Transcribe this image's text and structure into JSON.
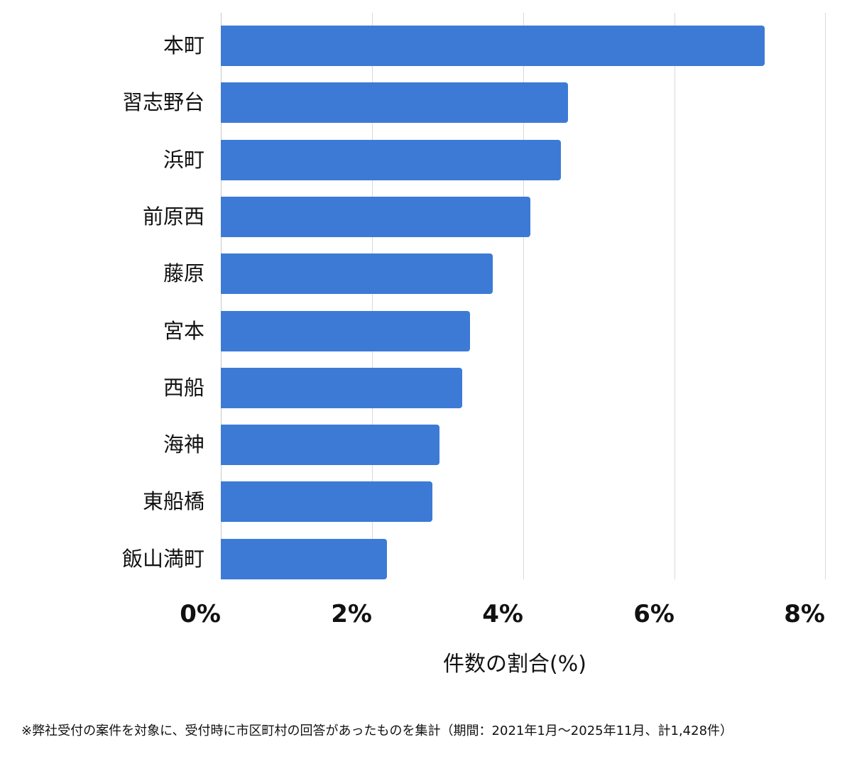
{
  "chart_data": {
    "type": "bar",
    "orientation": "horizontal",
    "title": "",
    "categories": [
      "本町",
      "習志野台",
      "浜町",
      "前原西",
      "藤原",
      "宮本",
      "西船",
      "海神",
      "東船橋",
      "飯山満町"
    ],
    "values": [
      7.2,
      4.6,
      4.5,
      4.1,
      3.6,
      3.3,
      3.2,
      2.9,
      2.8,
      2.2
    ],
    "xlabel": "件数の割合(%)",
    "ylabel": "",
    "xlim": [
      0,
      8
    ],
    "xticks": [
      "0%",
      "2%",
      "4%",
      "6%",
      "8%"
    ],
    "grid": true,
    "legend": null,
    "bar_color": "#3d7ad6",
    "footnote": "※弊社受付の案件を対象に、受付時に市区町村の回答があったものを集計（期間：2021年1月〜2025年11月、計1,428件）"
  },
  "labels": {
    "bars": [
      {
        "name": "本町",
        "value": 7.2
      },
      {
        "name": "習志野台",
        "value": 4.6
      },
      {
        "name": "浜町",
        "value": 4.5
      },
      {
        "name": "前原西",
        "value": 4.1
      },
      {
        "name": "藤原",
        "value": 3.6
      },
      {
        "name": "宮本",
        "value": 3.3
      },
      {
        "name": "西船",
        "value": 3.2
      },
      {
        "name": "海神",
        "value": 2.9
      },
      {
        "name": "東船橋",
        "value": 2.8
      },
      {
        "name": "飯山満町",
        "value": 2.2
      }
    ],
    "ticks": [
      "0%",
      "2%",
      "4%",
      "6%",
      "8%"
    ],
    "xlabel": "件数の割合(%)",
    "footnote": "※弊社受付の案件を対象に、受付時に市区町村の回答があったものを集計（期間：2021年1月〜2025年11月、計1,428件）"
  }
}
